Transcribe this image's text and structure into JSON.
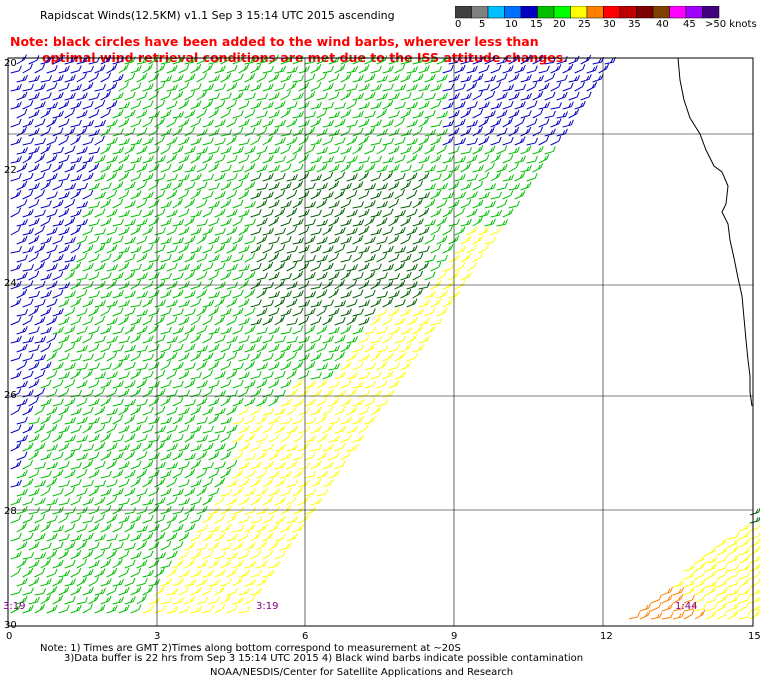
{
  "title": "Rapidscat Winds(12.5KM) v1.1 Sep  3 15:14 UTC 2015 ascending",
  "note_line1": "Note: black circles have been added to the wind barbs, wherever less than",
  "note_line2": "optimal wind retrieval conditions are met due to the ISS attitude changes.",
  "colorbar": {
    "labels": [
      "0",
      "5",
      "10",
      "15",
      "20",
      "25",
      "30",
      "35",
      "40",
      "45",
      ">50 knots"
    ],
    "colors": [
      "#404040",
      "#808080",
      "#00c0ff",
      "#0070ff",
      "#0000c0",
      "#00c000",
      "#00ff00",
      "#ffff00",
      "#ff8000",
      "#ff0000",
      "#c00000",
      "#800000",
      "#804000",
      "#ff00ff",
      "#a000ff",
      "#400080"
    ]
  },
  "axes": {
    "y_labels": [
      "20",
      "22",
      "24",
      "26",
      "28",
      "30"
    ],
    "x_labels": [
      "0",
      "3",
      "6",
      "9",
      "12",
      "15"
    ]
  },
  "time_labels": [
    "3:19",
    "3:19",
    "1:44"
  ],
  "footnote_line1": "Note: 1) Times are GMT 2)Times along bottom correspond to measurement at ~20S",
  "footnote_line2": "3)Data buffer is 22 hrs from Sep  3 15:14 UTC 2015 4) Black wind barbs indicate possible contamination",
  "credit": "NOAA/NESDIS/Center for Satellite Applications and Research",
  "colors": {
    "note": "#ff0000",
    "time_label": "#800080",
    "barb_blue": "#0000c0",
    "barb_green": "#00c000",
    "barb_dark_green": "#006000",
    "barb_yellow": "#ffff00",
    "barb_orange": "#ff8000",
    "coastline": "#000000",
    "grid": "#000000"
  }
}
